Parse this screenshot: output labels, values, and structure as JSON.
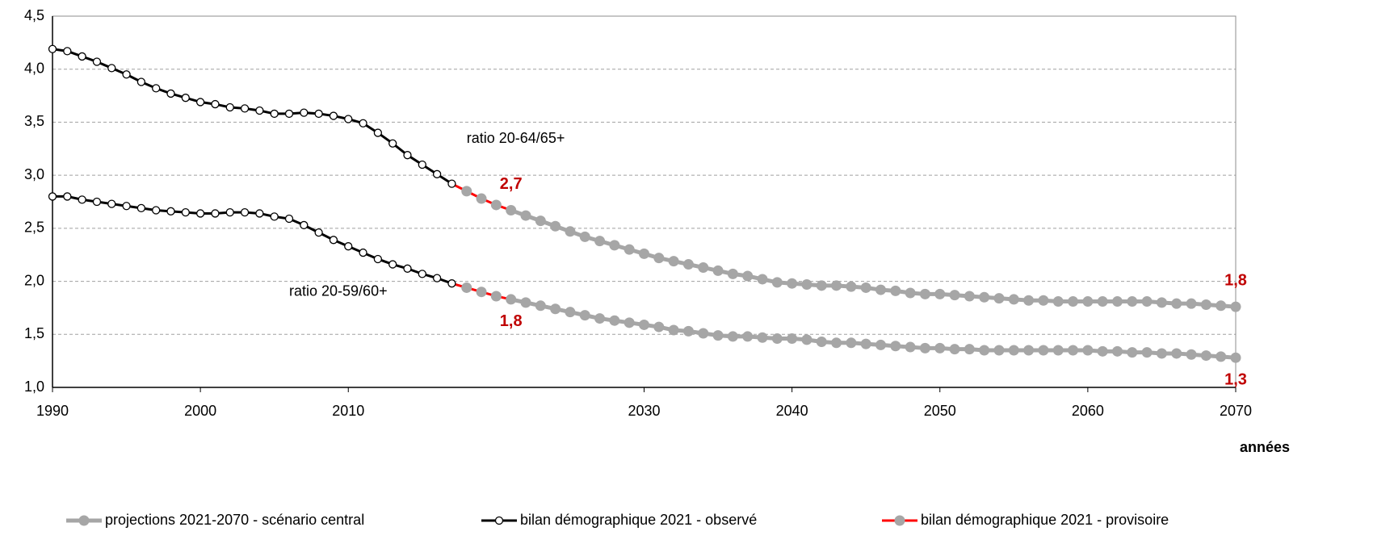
{
  "chart_data": {
    "type": "line",
    "xlabel": "années",
    "annotations": [
      {
        "text": "ratio 20-64/65+",
        "x": 2018,
        "y": 3.34
      },
      {
        "text": "ratio 20-59/60+",
        "x": 2006,
        "y": 1.9
      }
    ],
    "xlim": [
      1990,
      2070
    ],
    "xticks": [
      1990,
      2000,
      2010,
      2030,
      2040,
      2050,
      2060,
      2070
    ],
    "ylim": [
      1.0,
      4.5
    ],
    "yticks": [
      {
        "value": 1.0,
        "label": "1,0"
      },
      {
        "value": 1.5,
        "label": "1,5"
      },
      {
        "value": 2.0,
        "label": "2,0"
      },
      {
        "value": 2.5,
        "label": "2,5"
      },
      {
        "value": 3.0,
        "label": "3,0"
      },
      {
        "value": 3.5,
        "label": "3,5"
      },
      {
        "value": 4.0,
        "label": "4,0"
      },
      {
        "value": 4.5,
        "label": "4,5"
      }
    ],
    "grid": true,
    "series": [
      {
        "name": "projections 2021-2070 - scénario central",
        "color": "#a6a6a6",
        "marker_fill": "#a6a6a6",
        "x": [
          2022,
          2023,
          2024,
          2025,
          2026,
          2027,
          2028,
          2029,
          2030,
          2031,
          2032,
          2033,
          2034,
          2035,
          2036,
          2037,
          2038,
          2039,
          2040,
          2041,
          2042,
          2043,
          2044,
          2045,
          2046,
          2047,
          2048,
          2049,
          2050,
          2051,
          2052,
          2053,
          2054,
          2055,
          2056,
          2057,
          2058,
          2059,
          2060,
          2061,
          2062,
          2063,
          2064,
          2065,
          2066,
          2067,
          2068,
          2069,
          2070
        ],
        "lines": [
          {
            "values": [
              2.62,
              2.57,
              2.52,
              2.47,
              2.42,
              2.38,
              2.34,
              2.3,
              2.26,
              2.22,
              2.19,
              2.16,
              2.13,
              2.1,
              2.07,
              2.05,
              2.02,
              1.99,
              1.98,
              1.97,
              1.96,
              1.96,
              1.95,
              1.94,
              1.92,
              1.91,
              1.89,
              1.88,
              1.88,
              1.87,
              1.86,
              1.85,
              1.84,
              1.83,
              1.82,
              1.82,
              1.81,
              1.81,
              1.81,
              1.81,
              1.81,
              1.81,
              1.81,
              1.8,
              1.79,
              1.79,
              1.78,
              1.77,
              1.76
            ],
            "value_labels": [
              null,
              null,
              null,
              null,
              null,
              null,
              null,
              null,
              null,
              null,
              null,
              null,
              null,
              null,
              null,
              null,
              null,
              null,
              null,
              null,
              null,
              null,
              null,
              null,
              null,
              null,
              null,
              null,
              null,
              null,
              null,
              null,
              null,
              null,
              null,
              null,
              null,
              null,
              null,
              null,
              null,
              null,
              null,
              null,
              null,
              null,
              null,
              null,
              "1,8"
            ]
          },
          {
            "values": [
              1.8,
              1.77,
              1.74,
              1.71,
              1.68,
              1.65,
              1.63,
              1.61,
              1.59,
              1.57,
              1.54,
              1.53,
              1.51,
              1.49,
              1.48,
              1.48,
              1.47,
              1.46,
              1.46,
              1.45,
              1.43,
              1.42,
              1.42,
              1.41,
              1.4,
              1.39,
              1.38,
              1.37,
              1.37,
              1.36,
              1.36,
              1.35,
              1.35,
              1.35,
              1.35,
              1.35,
              1.35,
              1.35,
              1.35,
              1.34,
              1.34,
              1.33,
              1.33,
              1.32,
              1.32,
              1.31,
              1.3,
              1.29,
              1.28
            ],
            "value_labels": [
              null,
              null,
              null,
              null,
              null,
              null,
              null,
              null,
              null,
              null,
              null,
              null,
              null,
              null,
              null,
              null,
              null,
              null,
              null,
              null,
              null,
              null,
              null,
              null,
              null,
              null,
              null,
              null,
              null,
              null,
              null,
              null,
              null,
              null,
              null,
              null,
              null,
              null,
              null,
              null,
              null,
              null,
              null,
              null,
              null,
              null,
              null,
              null,
              "1,3"
            ]
          }
        ]
      },
      {
        "name": "bilan démographique 2021 - observé",
        "color": "#000000",
        "marker_fill": "#ffffff",
        "x": [
          1990,
          1991,
          1992,
          1993,
          1994,
          1995,
          1996,
          1997,
          1998,
          1999,
          2000,
          2001,
          2002,
          2003,
          2004,
          2005,
          2006,
          2007,
          2008,
          2009,
          2010,
          2011,
          2012,
          2013,
          2014,
          2015,
          2016,
          2017
        ],
        "lines": [
          {
            "values": [
              4.19,
              4.17,
              4.12,
              4.07,
              4.01,
              3.95,
              3.88,
              3.82,
              3.77,
              3.73,
              3.69,
              3.67,
              3.64,
              3.63,
              3.61,
              3.58,
              3.58,
              3.59,
              3.58,
              3.56,
              3.53,
              3.49,
              3.4,
              3.3,
              3.19,
              3.1,
              3.01,
              2.92
            ]
          },
          {
            "values": [
              2.8,
              2.8,
              2.77,
              2.75,
              2.73,
              2.71,
              2.69,
              2.67,
              2.66,
              2.65,
              2.64,
              2.64,
              2.65,
              2.65,
              2.64,
              2.61,
              2.59,
              2.53,
              2.46,
              2.39,
              2.33,
              2.27,
              2.21,
              2.16,
              2.12,
              2.07,
              2.03,
              1.98
            ]
          }
        ]
      },
      {
        "name": "bilan démographique 2021 - provisoire",
        "color": "#ff0000",
        "marker_fill": "#a6a6a6",
        "x": [
          2018,
          2019,
          2020,
          2021
        ],
        "lines": [
          {
            "values": [
              2.85,
              2.78,
              2.72,
              2.67
            ],
            "value_labels": [
              null,
              null,
              null,
              "2,7"
            ]
          },
          {
            "values": [
              1.94,
              1.9,
              1.86,
              1.83
            ],
            "value_labels": [
              null,
              null,
              null,
              "1,8"
            ]
          }
        ]
      }
    ]
  }
}
